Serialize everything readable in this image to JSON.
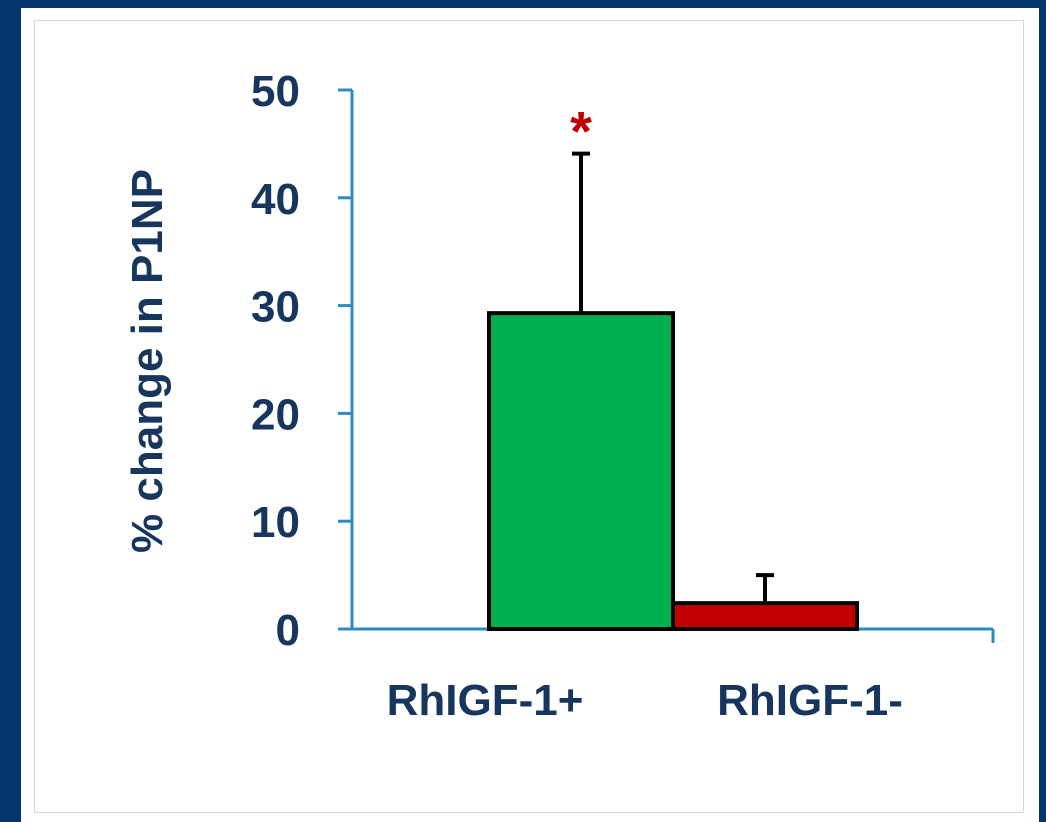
{
  "chart_data": {
    "type": "bar",
    "categories": [
      "RhIGF-1+",
      "RhIGF-1-"
    ],
    "values": [
      29.3,
      2.4
    ],
    "error": [
      14.8,
      2.6
    ],
    "colors": [
      "#00b04f",
      "#c00000"
    ],
    "ylabel": "% change in P1NP",
    "ylim": [
      0,
      50
    ],
    "yticks": [
      "0",
      "10",
      "20",
      "30",
      "40",
      "50"
    ],
    "annotations": [
      {
        "category": "RhIGF-1+",
        "text": "*",
        "color": "#c00000"
      }
    ],
    "axis_color": "#2e8bc0",
    "text_color": "#17365d",
    "grid": false,
    "legend": "none"
  }
}
